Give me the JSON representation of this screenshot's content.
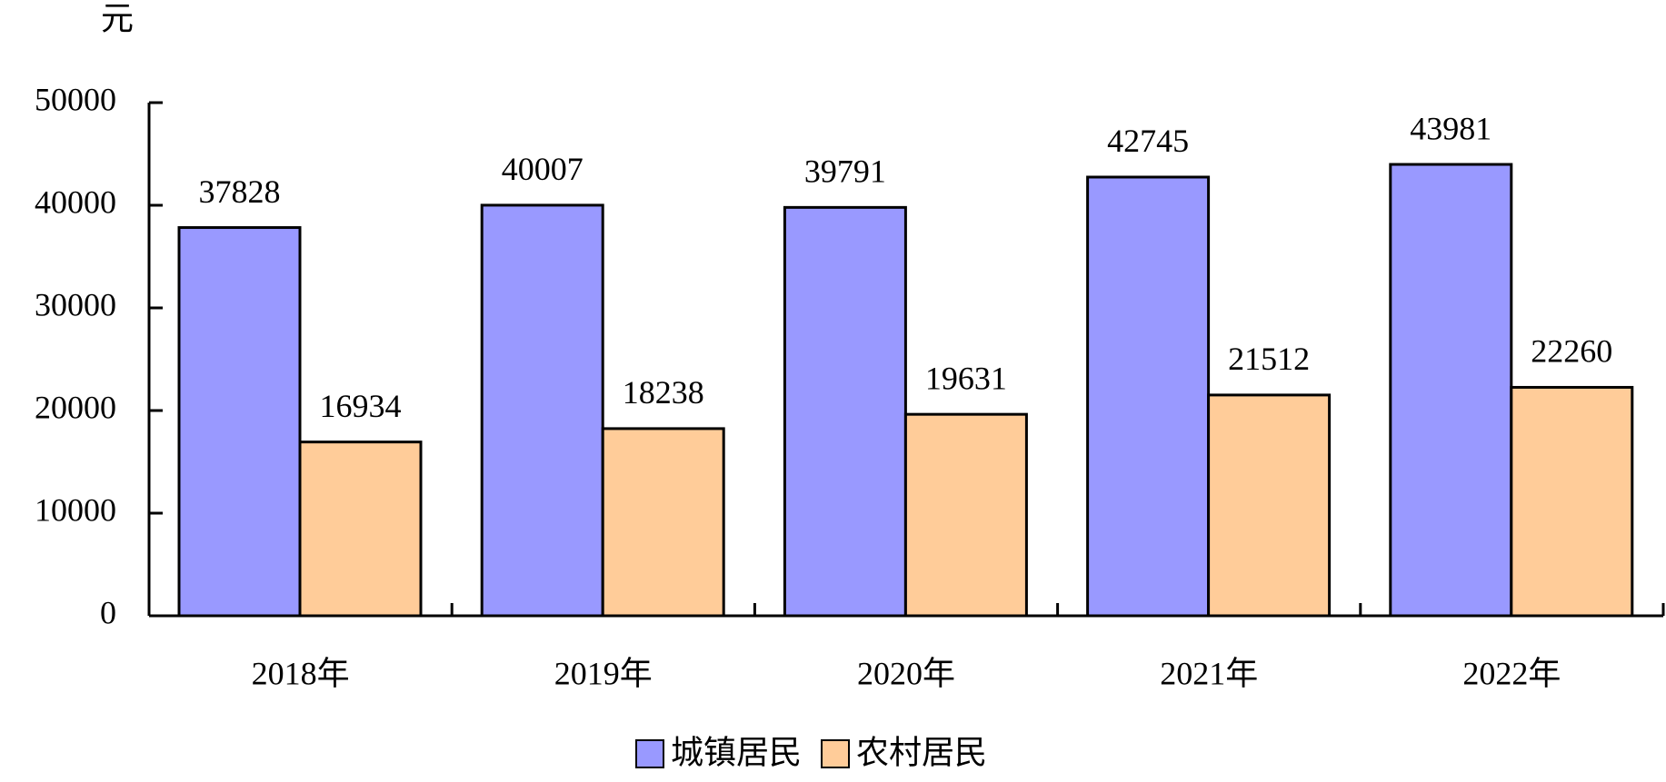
{
  "chart_data": {
    "type": "bar",
    "y_axis_label": "元",
    "categories": [
      "2018年",
      "2019年",
      "2020年",
      "2021年",
      "2022年"
    ],
    "series": [
      {
        "name": "城镇居民",
        "color": "#9999ff",
        "values": [
          37828,
          40007,
          39791,
          42745,
          43981
        ]
      },
      {
        "name": "农村居民",
        "color": "#ffcc99",
        "values": [
          16934,
          18238,
          19631,
          21512,
          22260
        ]
      }
    ],
    "ylim": [
      0,
      50000
    ],
    "yticks": [
      0,
      10000,
      20000,
      30000,
      40000,
      50000
    ],
    "legend": "bottom"
  }
}
